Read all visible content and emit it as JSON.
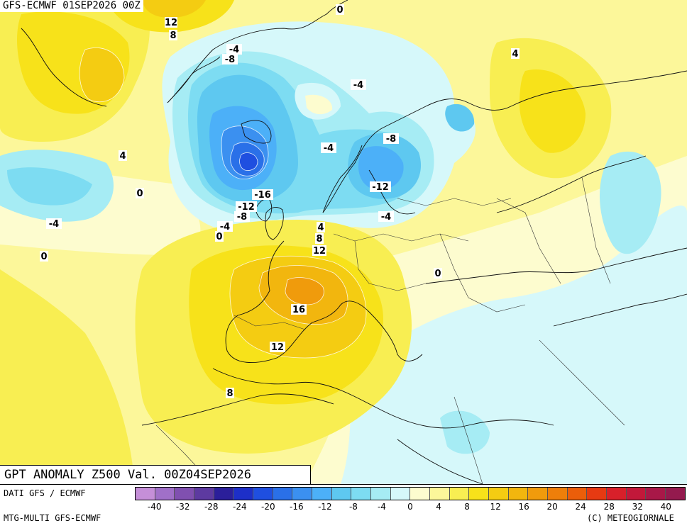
{
  "run_label": "GFS-ECMWF 01SEP2026 00Z",
  "title": "GPT ANOMALY Z500 Val. 00Z04SEP2026",
  "footer": {
    "source": "DATI GFS / ECMWF",
    "model": "MTG-MULTI GFS-ECMWF",
    "copyright": "(C) METEOGIORNALE"
  },
  "legend": {
    "ticks": [
      "-40",
      "-32",
      "-28",
      "-24",
      "-20",
      "-16",
      "-12",
      "-8",
      "-4",
      "0",
      "4",
      "8",
      "12",
      "16",
      "20",
      "24",
      "28",
      "32",
      "40"
    ],
    "colors": [
      "#c58fd8",
      "#a070c8",
      "#8050b0",
      "#5d3aa0",
      "#2b1f9a",
      "#1d2fc8",
      "#1f4fe0",
      "#2a70e8",
      "#3b90f0",
      "#4cb0f8",
      "#5ec8f0",
      "#7ddcf2",
      "#a6ecf4",
      "#d6f8fa",
      "#fdfccf",
      "#fcf79a",
      "#f8ee52",
      "#f7e21a",
      "#f4cc12",
      "#f2b60e",
      "#f09b0c",
      "#ee7f0a",
      "#eb5e0a",
      "#e63a12",
      "#d8202a",
      "#c2183a",
      "#a81848",
      "#941a4e"
    ]
  },
  "map": {
    "contour_labels": [
      {
        "text": "12"
      },
      {
        "text": "8"
      },
      {
        "text": "0"
      },
      {
        "text": "4"
      },
      {
        "text": "-4"
      },
      {
        "text": "-8"
      },
      {
        "text": "-4"
      },
      {
        "text": "4"
      },
      {
        "text": "-4"
      },
      {
        "text": "-8"
      },
      {
        "text": "0"
      },
      {
        "text": "-16"
      },
      {
        "text": "-12"
      },
      {
        "text": "-12"
      },
      {
        "text": "-8"
      },
      {
        "text": "-4"
      },
      {
        "text": "-4"
      },
      {
        "text": "-4"
      },
      {
        "text": "0"
      },
      {
        "text": "4"
      },
      {
        "text": "8"
      },
      {
        "text": "12"
      },
      {
        "text": "0"
      },
      {
        "text": "16"
      },
      {
        "text": "12"
      },
      {
        "text": "8"
      },
      {
        "text": "0"
      }
    ]
  }
}
